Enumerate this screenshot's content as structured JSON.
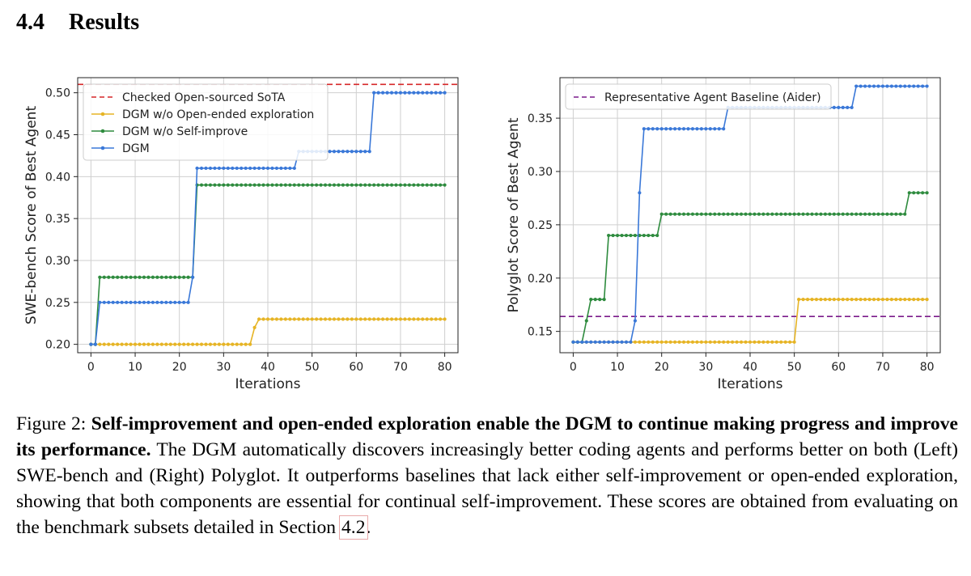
{
  "section": {
    "number": "4.4",
    "title": "Results"
  },
  "chart_data": [
    {
      "type": "line",
      "xlabel": "Iterations",
      "ylabel": "SWE-bench Score of Best Agent",
      "xlim": [
        -3,
        83
      ],
      "ylim": [
        0.19,
        0.518
      ],
      "xticks": [
        0,
        10,
        20,
        30,
        40,
        50,
        60,
        70,
        80
      ],
      "yticks": [
        0.2,
        0.25,
        0.3,
        0.35,
        0.4,
        0.45,
        0.5
      ],
      "ytick_labels": [
        "0.20",
        "0.25",
        "0.30",
        "0.35",
        "0.40",
        "0.45",
        "0.50"
      ],
      "grid": true,
      "legend_position": "upper-left",
      "baseline": {
        "name": "Checked Open-sourced SoTA",
        "value": 0.51,
        "color": "#d62728",
        "style": "dashed"
      },
      "series": [
        {
          "name": "DGM w/o Open-ended exploration",
          "color": "#e6b425",
          "steps": [
            [
              0,
              0.2
            ],
            [
              37,
              0.22
            ],
            [
              38,
              0.23
            ]
          ]
        },
        {
          "name": "DGM w/o Self-improve",
          "color": "#2e8b3e",
          "steps": [
            [
              0,
              0.2
            ],
            [
              2,
              0.28
            ],
            [
              24,
              0.39
            ]
          ]
        },
        {
          "name": "DGM",
          "color": "#3a78d8",
          "steps": [
            [
              0,
              0.2
            ],
            [
              2,
              0.25
            ],
            [
              23,
              0.28
            ],
            [
              24,
              0.41
            ],
            [
              47,
              0.43
            ],
            [
              64,
              0.5
            ]
          ]
        }
      ]
    },
    {
      "type": "line",
      "xlabel": "Iterations",
      "ylabel": "Polyglot Score of Best Agent",
      "xlim": [
        -3,
        83
      ],
      "ylim": [
        0.13,
        0.388
      ],
      "xticks": [
        0,
        10,
        20,
        30,
        40,
        50,
        60,
        70,
        80
      ],
      "yticks": [
        0.15,
        0.2,
        0.25,
        0.3,
        0.35
      ],
      "ytick_labels": [
        "0.15",
        "0.20",
        "0.25",
        "0.30",
        "0.35"
      ],
      "grid": true,
      "legend_position": "upper-left",
      "baseline": {
        "name": "Representative Agent Baseline (Aider)",
        "value": 0.164,
        "color": "#7b1a8b",
        "style": "dashed"
      },
      "series": [
        {
          "name": "DGM w/o Open-ended exploration",
          "color": "#e6b425",
          "steps": [
            [
              0,
              0.14
            ],
            [
              51,
              0.18
            ]
          ]
        },
        {
          "name": "DGM w/o Self-improve",
          "color": "#2e8b3e",
          "steps": [
            [
              0,
              0.14
            ],
            [
              3,
              0.16
            ],
            [
              4,
              0.18
            ],
            [
              8,
              0.24
            ],
            [
              20,
              0.26
            ],
            [
              76,
              0.28
            ]
          ]
        },
        {
          "name": "DGM",
          "color": "#3a78d8",
          "steps": [
            [
              0,
              0.14
            ],
            [
              14,
              0.16
            ],
            [
              15,
              0.28
            ],
            [
              16,
              0.34
            ],
            [
              35,
              0.36
            ],
            [
              64,
              0.38
            ]
          ]
        }
      ]
    }
  ],
  "caption": {
    "figure_label": "Figure 2:",
    "bold_part": "Self-improvement and open-ended exploration enable the DGM to continue making progress and improve its performance.",
    "body": "The DGM automatically discovers increasingly better coding agents and performs better on both (Left) SWE-bench and (Right) Polyglot. It outperforms baselines that lack either self-improvement or open-ended exploration, showing that both components are essential for continual self-improvement.  These scores are obtained from evaluating on the benchmark subsets detailed in Section",
    "section_ref": "4.2",
    "end": "."
  }
}
